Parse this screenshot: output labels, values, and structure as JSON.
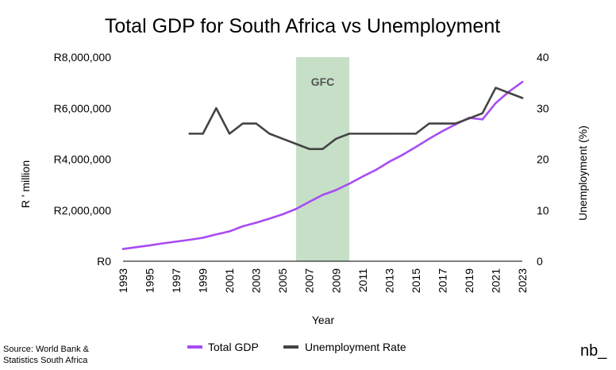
{
  "chart_data": {
    "type": "line",
    "title": "Total GDP for South Africa vs Unemployment",
    "xlabel": "Year",
    "ylabel_left": "R ' million",
    "ylabel_right": "Unemployment (%)",
    "x_ticks": [
      "1993",
      "1995",
      "1997",
      "1999",
      "2001",
      "2003",
      "2005",
      "2007",
      "2009",
      "2011",
      "2013",
      "2015",
      "2017",
      "2019",
      "2021",
      "2023"
    ],
    "x_range": [
      1993,
      2023
    ],
    "y_left": {
      "ticks": [
        "R0",
        "R2,000,000",
        "R4,000,000",
        "R6,000,000",
        "R8,000,000"
      ],
      "range": [
        0,
        8000000
      ]
    },
    "y_right": {
      "ticks": [
        "0",
        "10",
        "20",
        "30",
        "40"
      ],
      "range": [
        0,
        40
      ]
    },
    "highlight": {
      "label": "GFC",
      "start": 2006,
      "end": 2010,
      "color": "#c6dfc7"
    },
    "series": [
      {
        "name": "Total GDP",
        "axis": "left",
        "color": "#a84cf2",
        "x": [
          1993,
          1994,
          1995,
          1996,
          1997,
          1998,
          1999,
          2000,
          2001,
          2002,
          2003,
          2004,
          2005,
          2006,
          2007,
          2008,
          2009,
          2010,
          2011,
          2012,
          2013,
          2014,
          2015,
          2016,
          2017,
          2018,
          2019,
          2020,
          2021,
          2022,
          2023
        ],
        "y": [
          480000,
          550000,
          620000,
          700000,
          770000,
          840000,
          920000,
          1050000,
          1170000,
          1370000,
          1510000,
          1670000,
          1840000,
          2050000,
          2330000,
          2600000,
          2790000,
          3040000,
          3320000,
          3580000,
          3900000,
          4170000,
          4480000,
          4800000,
          5100000,
          5370000,
          5620000,
          5560000,
          6200000,
          6650000,
          7030000
        ]
      },
      {
        "name": "Unemployment Rate",
        "axis": "right",
        "color": "#444444",
        "x": [
          1998,
          1999,
          2000,
          2001,
          2002,
          2003,
          2004,
          2005,
          2006,
          2007,
          2008,
          2009,
          2010,
          2011,
          2012,
          2013,
          2014,
          2015,
          2016,
          2017,
          2018,
          2019,
          2020,
          2021,
          2022,
          2023
        ],
        "y": [
          25,
          25,
          30,
          25,
          27,
          27,
          25,
          24,
          23,
          22,
          22,
          24,
          25,
          25,
          25,
          25,
          25,
          25,
          27,
          27,
          27,
          28,
          29,
          34,
          33,
          32
        ]
      }
    ],
    "legend": {
      "position": "bottom"
    },
    "grid": false
  },
  "footer": {
    "source_line1": "Source: World Bank &",
    "source_line2": "Statistics South Africa",
    "brand": "nb_"
  }
}
